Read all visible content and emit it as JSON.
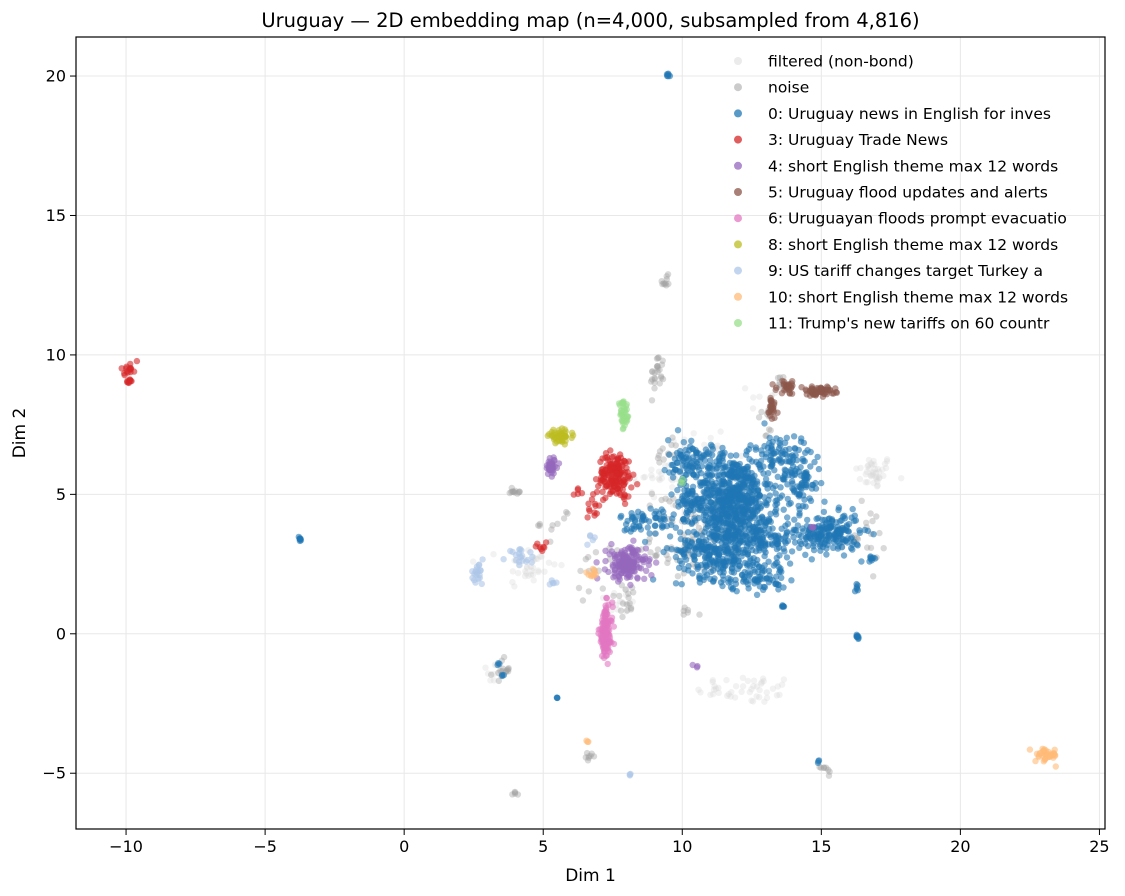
{
  "chart_data": {
    "type": "scatter",
    "title": "Uruguay — 2D embedding map (n=4,000, subsampled from 4,816)",
    "xlabel": "Dim 1",
    "ylabel": "Dim 2",
    "xlim": [
      -11.8,
      25.2
    ],
    "ylim": [
      -7.0,
      21.4
    ],
    "xticks": [
      -10,
      -5,
      0,
      5,
      10,
      15,
      20,
      25
    ],
    "xtick_labels": [
      "−10",
      "−5",
      "0",
      "5",
      "10",
      "15",
      "20",
      "25"
    ],
    "yticks": [
      -5,
      0,
      5,
      10,
      15,
      20
    ],
    "ytick_labels": [
      "−5",
      "0",
      "5",
      "10",
      "15",
      "20"
    ],
    "grid": true,
    "legend_position": "top-right",
    "series": [
      {
        "name": "filtered (non-bond)",
        "color": "#d3d3d3",
        "opacity": 0.3,
        "clusters": [
          [
            16.9,
            5.8,
            0.35,
            0.3,
            40
          ],
          [
            12.3,
            -2.0,
            0.9,
            0.25,
            45
          ],
          [
            4.5,
            2.4,
            0.5,
            0.4,
            35
          ],
          [
            9.2,
            5.5,
            0.6,
            0.5,
            25
          ],
          [
            7.8,
            1.2,
            0.3,
            0.3,
            15
          ],
          [
            3.2,
            -1.4,
            0.2,
            0.2,
            10
          ],
          [
            11.0,
            6.8,
            0.8,
            0.3,
            15
          ],
          [
            13.0,
            8.5,
            0.3,
            0.3,
            8
          ]
        ]
      },
      {
        "name": "noise",
        "color": "#a0a0a0",
        "opacity": 0.4,
        "clusters": [
          [
            9.1,
            9.3,
            0.12,
            0.4,
            25
          ],
          [
            9.4,
            12.6,
            0.1,
            0.12,
            10
          ],
          [
            3.5,
            -1.3,
            0.15,
            0.2,
            15
          ],
          [
            15.2,
            -4.9,
            0.12,
            0.1,
            8
          ],
          [
            10.3,
            3.0,
            0.7,
            0.6,
            50
          ],
          [
            8.0,
            1.3,
            0.2,
            0.3,
            15
          ],
          [
            4.0,
            5.1,
            0.15,
            0.07,
            12
          ],
          [
            6.7,
            -4.4,
            0.08,
            0.07,
            8
          ],
          [
            4.0,
            -5.7,
            0.06,
            0.05,
            5
          ],
          [
            9.8,
            4.3,
            0.6,
            0.5,
            25
          ],
          [
            13.5,
            9.0,
            0.1,
            0.15,
            6
          ],
          [
            16.5,
            3.5,
            0.4,
            0.5,
            20
          ],
          [
            13.0,
            7.5,
            0.2,
            0.4,
            10
          ],
          [
            10.2,
            0.8,
            0.15,
            0.1,
            6
          ],
          [
            9.3,
            6.5,
            0.3,
            0.3,
            12
          ],
          [
            5.5,
            4.0,
            0.3,
            0.3,
            10
          ],
          [
            6.8,
            2.2,
            0.4,
            0.4,
            15
          ]
        ]
      },
      {
        "name": "0: Uruguay news in English for inves",
        "color": "#1f77b4",
        "opacity": 0.6,
        "clusters": [
          [
            11.8,
            4.8,
            0.7,
            0.8,
            650
          ],
          [
            11.2,
            3.0,
            0.7,
            0.5,
            250
          ],
          [
            14.2,
            5.5,
            0.4,
            0.6,
            100
          ],
          [
            15.3,
            3.6,
            0.55,
            0.35,
            180
          ],
          [
            13.0,
            3.5,
            0.6,
            0.4,
            120
          ],
          [
            12.6,
            2.1,
            0.6,
            0.3,
            90
          ],
          [
            8.8,
            4.0,
            0.5,
            0.35,
            60
          ],
          [
            10.3,
            6.2,
            0.4,
            0.4,
            80
          ],
          [
            13.4,
            6.5,
            0.4,
            0.3,
            60
          ],
          [
            9.5,
            20.05,
            0.03,
            0.03,
            6
          ],
          [
            -3.75,
            3.4,
            0.03,
            0.04,
            8
          ],
          [
            16.3,
            -0.1,
            0.04,
            0.05,
            8
          ],
          [
            13.6,
            1.0,
            0.03,
            0.04,
            6
          ],
          [
            5.5,
            -2.3,
            0.02,
            0.02,
            3
          ],
          [
            16.8,
            2.6,
            0.12,
            0.1,
            8
          ],
          [
            14.9,
            -4.55,
            0.03,
            0.03,
            3
          ],
          [
            16.3,
            1.7,
            0.05,
            0.1,
            6
          ],
          [
            3.4,
            -1.1,
            0.03,
            0.03,
            3
          ],
          [
            3.5,
            -1.5,
            0.03,
            0.03,
            3
          ],
          [
            10.2,
            4.8,
            0.3,
            0.3,
            40
          ]
        ]
      },
      {
        "name": "3: Uruguay Trade News",
        "color": "#d62728",
        "opacity": 0.6,
        "clusters": [
          [
            7.6,
            5.7,
            0.3,
            0.4,
            160
          ],
          [
            6.8,
            4.5,
            0.1,
            0.2,
            12
          ],
          [
            -9.9,
            9.45,
            0.08,
            0.15,
            18
          ],
          [
            -9.9,
            9.05,
            0.05,
            0.05,
            6
          ],
          [
            4.9,
            3.1,
            0.15,
            0.08,
            8
          ],
          [
            6.2,
            5.1,
            0.1,
            0.1,
            5
          ]
        ]
      },
      {
        "name": "4: short English theme max 12 words",
        "color": "#9467bd",
        "opacity": 0.6,
        "clusters": [
          [
            8.0,
            2.5,
            0.35,
            0.3,
            170
          ],
          [
            5.3,
            6.0,
            0.12,
            0.15,
            40
          ],
          [
            14.7,
            3.8,
            0.05,
            0.05,
            3
          ],
          [
            10.5,
            -1.1,
            0.05,
            0.05,
            3
          ]
        ]
      },
      {
        "name": "5: Uruguay flood updates and alerts",
        "color": "#8c564b",
        "opacity": 0.6,
        "clusters": [
          [
            14.9,
            8.7,
            0.3,
            0.08,
            60
          ],
          [
            13.8,
            8.85,
            0.2,
            0.12,
            30
          ],
          [
            13.2,
            8.1,
            0.1,
            0.3,
            25
          ]
        ]
      },
      {
        "name": "6: Uruguayan floods prompt evacuatio",
        "color": "#e377c2",
        "opacity": 0.6,
        "clusters": [
          [
            7.25,
            0.0,
            0.12,
            0.5,
            120
          ]
        ]
      },
      {
        "name": "8: short English theme max 12 words",
        "color": "#bcbd22",
        "opacity": 0.6,
        "clusters": [
          [
            5.6,
            7.1,
            0.2,
            0.1,
            50
          ]
        ]
      },
      {
        "name": "9: US tariff changes target Turkey a",
        "color": "#aec7e8",
        "opacity": 0.6,
        "clusters": [
          [
            2.6,
            2.1,
            0.12,
            0.2,
            20
          ],
          [
            4.2,
            2.8,
            0.25,
            0.12,
            20
          ],
          [
            8.15,
            -5.05,
            0.03,
            0.03,
            3
          ],
          [
            6.7,
            3.4,
            0.1,
            0.2,
            5
          ],
          [
            5.4,
            1.8,
            0.2,
            0.1,
            5
          ]
        ]
      },
      {
        "name": "10: short English theme max 12 words",
        "color": "#ffbb78",
        "opacity": 0.6,
        "clusters": [
          [
            23.1,
            -4.35,
            0.2,
            0.12,
            40
          ],
          [
            6.7,
            2.15,
            0.12,
            0.07,
            10
          ],
          [
            6.6,
            -3.85,
            0.02,
            0.02,
            3
          ]
        ]
      },
      {
        "name": "11: Trump's new tariffs on 60 countr",
        "color": "#98df8a",
        "opacity": 0.6,
        "clusters": [
          [
            7.9,
            7.8,
            0.1,
            0.25,
            40
          ],
          [
            10.0,
            5.4,
            0.05,
            0.05,
            3
          ]
        ]
      }
    ]
  }
}
